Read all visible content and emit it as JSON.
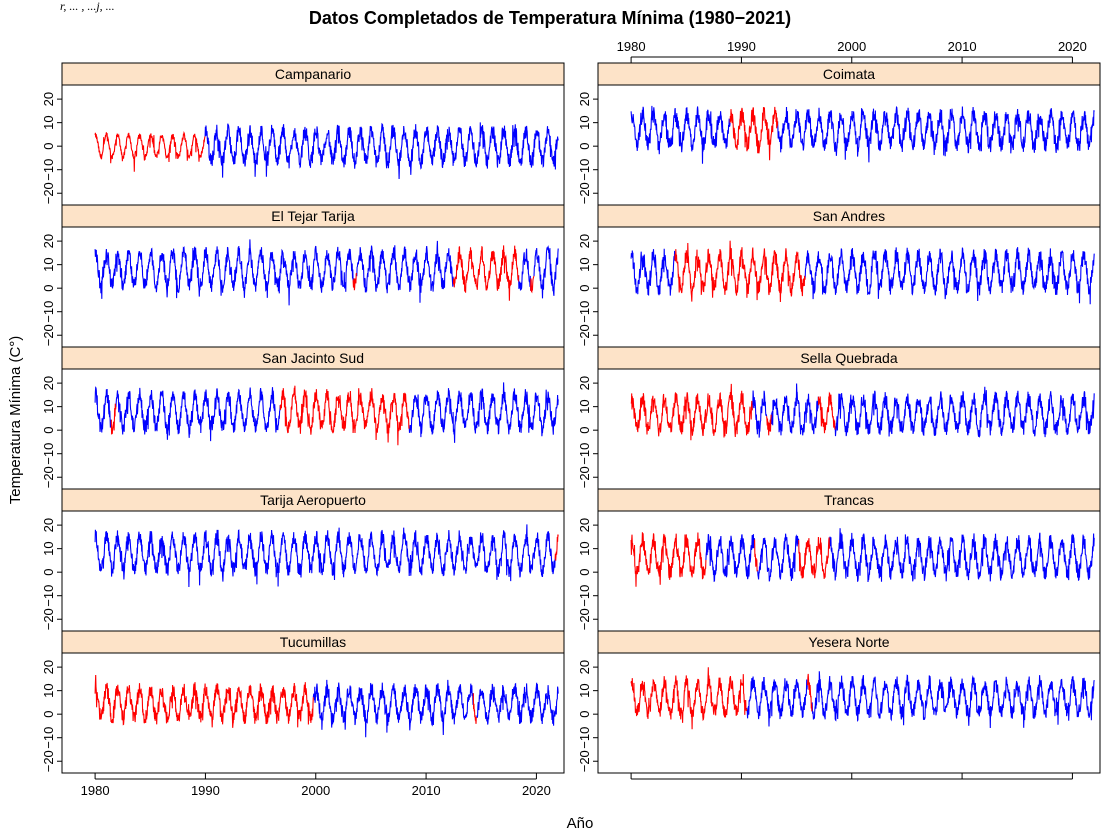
{
  "top_caption": "r, ... , ...j, ...",
  "chart_data": {
    "type": "line",
    "title": "Datos Completados de Temperatura Mínima (1980−2021)",
    "xlabel": "Año",
    "ylabel": "Temperatura Mínima (C°)",
    "xlim": [
      1977,
      2022.5
    ],
    "ylim": [
      -25,
      26
    ],
    "x_ticks": [
      1980,
      1990,
      2000,
      2010,
      2020
    ],
    "y_ticks": [
      -20,
      -10,
      0,
      10,
      20
    ],
    "y_tick_labels": [
      "−20",
      "−10",
      "0",
      "10",
      "20"
    ],
    "grid": false,
    "strip_color": "#fde3c8",
    "series_colors": {
      "observed": "#0000ff",
      "completed": "#ff0000"
    },
    "data_start": 1980,
    "data_end": 2022,
    "panels": [
      {
        "name": "Campanario",
        "mean": 0,
        "amp": 6.5,
        "noise": 3.2,
        "red": [
          [
            1980,
            1990
          ]
        ],
        "red_amp": 4.5,
        "red_noise": 1.2
      },
      {
        "name": "Coimata",
        "mean": 7,
        "amp": 6.5,
        "noise": 3.5,
        "red": [
          [
            1989,
            1993.3
          ]
        ]
      },
      {
        "name": "El Tejar Tarija",
        "mean": 8,
        "amp": 7,
        "noise": 3.2,
        "red": [
          [
            2003.4,
            2003.7
          ],
          [
            2012.5,
            2018.4
          ],
          [
            2019.5,
            2019.8
          ]
        ]
      },
      {
        "name": "San Andres",
        "mean": 7,
        "amp": 7,
        "noise": 3.5,
        "red": [
          [
            1984,
            1995.8
          ]
        ]
      },
      {
        "name": "San Jacinto Sud",
        "mean": 8,
        "amp": 7,
        "noise": 3.2,
        "red": [
          [
            1981.5,
            1981.9
          ],
          [
            1996.8,
            2008.5
          ]
        ]
      },
      {
        "name": "Sella Quebrada",
        "mean": 7,
        "amp": 6.5,
        "noise": 3.5,
        "red": [
          [
            1980,
            1991
          ],
          [
            1992.3,
            1992.7
          ],
          [
            1997,
            1998.5
          ]
        ]
      },
      {
        "name": "Tarija Aeropuerto",
        "mean": 8,
        "amp": 7,
        "noise": 3.2,
        "red": [
          [
            2021.7,
            2022
          ]
        ]
      },
      {
        "name": "Trancas",
        "mean": 6.5,
        "amp": 7,
        "noise": 3.5,
        "red": [
          [
            1980,
            1986.8
          ],
          [
            1991.2,
            1991.5
          ],
          [
            1995.2,
            1998
          ]
        ]
      },
      {
        "name": "Tucumillas",
        "mean": 4.5,
        "amp": 6,
        "noise": 3.2,
        "red": [
          [
            1980,
            1999.8
          ],
          [
            2014.3,
            2014.6
          ]
        ]
      },
      {
        "name": "Yesera Norte",
        "mean": 7,
        "amp": 6.5,
        "noise": 3.2,
        "red": [
          [
            1980,
            1990.5
          ],
          [
            1996,
            1996.4
          ]
        ]
      }
    ]
  }
}
